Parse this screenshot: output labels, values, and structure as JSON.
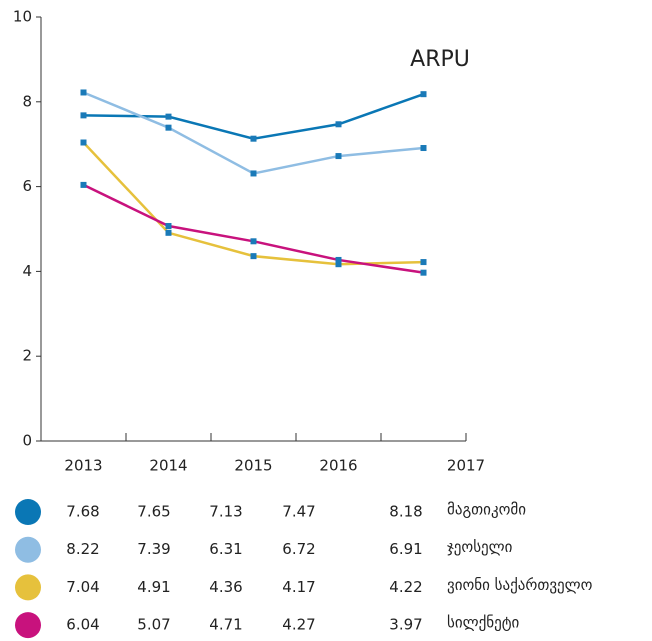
{
  "chart_data": {
    "type": "line",
    "title": "ARPU",
    "categories": [
      "2013",
      "2014",
      "2015",
      "2016",
      "2017"
    ],
    "ylim": [
      0,
      10
    ],
    "yticks": [
      0,
      2,
      4,
      6,
      8,
      10
    ],
    "grid": false,
    "marker_color": "#1a7ab8",
    "series": [
      {
        "name": "მაგთიკომი",
        "color": "#0a77b5",
        "values": [
          7.68,
          7.65,
          7.13,
          7.47,
          8.18
        ]
      },
      {
        "name": "ჯეოსელი",
        "color": "#8fbde3",
        "values": [
          8.22,
          7.39,
          6.31,
          6.72,
          6.91
        ]
      },
      {
        "name": "ვიონი საქართველო",
        "color": "#e6c13c",
        "values": [
          7.04,
          4.91,
          4.36,
          4.17,
          4.22
        ]
      },
      {
        "name": "სილქნეტი",
        "color": "#c8127d",
        "values": [
          6.04,
          5.07,
          4.71,
          4.27,
          3.97
        ]
      }
    ]
  }
}
